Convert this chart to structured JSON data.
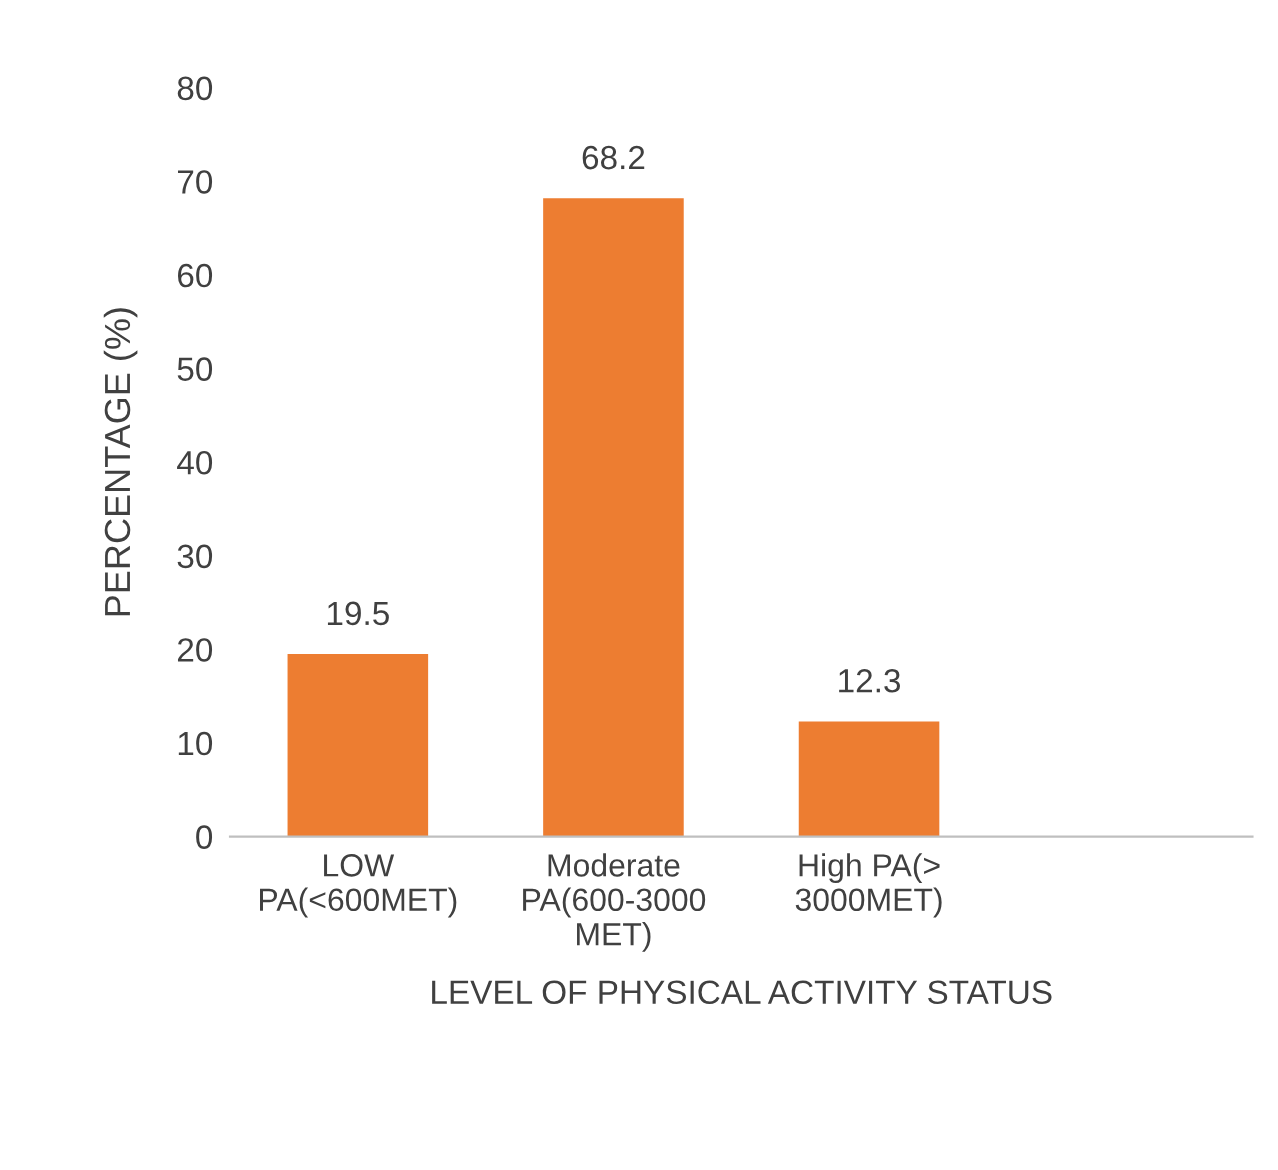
{
  "chart_data": {
    "type": "bar",
    "xlabel": "LEVEL OF PHYSICAL ACTIVITY STATUS",
    "ylabel": "PERCENTAGE (%)",
    "categories": [
      "LOW\nPA(<600MET)",
      "Moderate\nPA(600-3000\nMET)",
      "High PA(>\n3000MET)",
      null
    ],
    "values": [
      19.5,
      68.2,
      12.3,
      null
    ],
    "color": "#ed7d31",
    "ylim": [
      0,
      80
    ],
    "yticks": [
      0,
      10,
      20,
      30,
      40,
      50,
      60,
      70,
      80
    ],
    "data_labels": true,
    "grid": false,
    "legend": false
  }
}
